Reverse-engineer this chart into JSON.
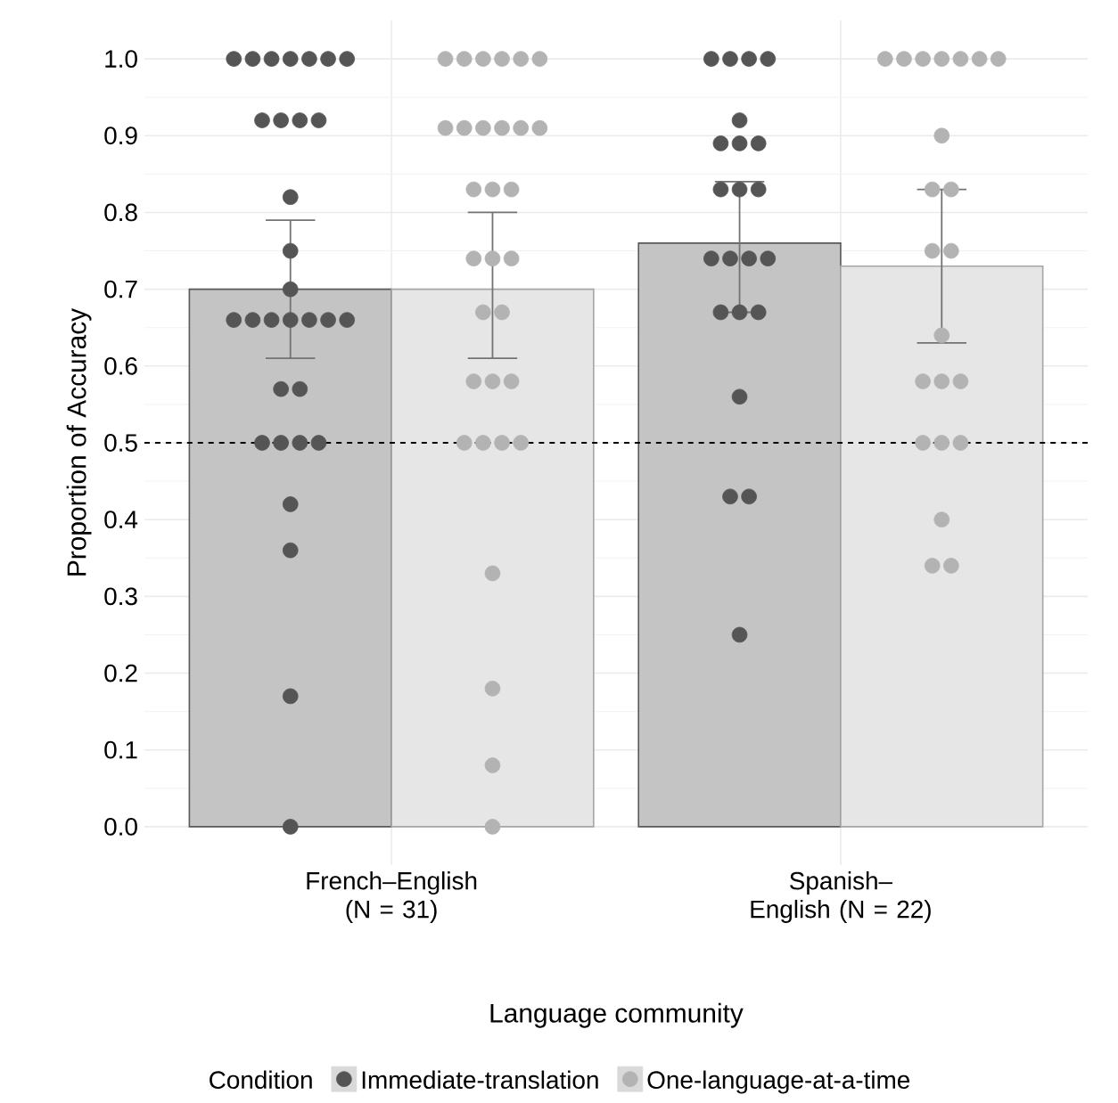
{
  "chart_data": {
    "type": "bar",
    "categories": [
      "French–English (N = 31)",
      "Spanish–English (N = 22)"
    ],
    "xlabel": "Language community",
    "ylabel": "Proportion of Accuracy",
    "legend_title": "Condition",
    "legend": "bottom",
    "grid": true,
    "ylim": [
      -0.05,
      1.05
    ],
    "yticks": [
      {
        "value": 0,
        "label": "0.0"
      },
      {
        "value": 0.1,
        "label": "0.1"
      },
      {
        "value": 0.2,
        "label": "0.2"
      },
      {
        "value": 0.3,
        "label": "0.3"
      },
      {
        "value": 0.4,
        "label": "0.4"
      },
      {
        "value": 0.5,
        "label": "0.5"
      },
      {
        "value": 0.6,
        "label": "0.6"
      },
      {
        "value": 0.7,
        "label": "0.7"
      },
      {
        "value": 0.8,
        "label": "0.8"
      },
      {
        "value": 0.9,
        "label": "0.9"
      },
      {
        "value": 1,
        "label": "1.0"
      }
    ],
    "ref_lines": [
      {
        "axis": "y",
        "value": 0.5,
        "color": "#000000",
        "line_style": "dashed"
      }
    ],
    "series": [
      {
        "color": "#c4c4c4",
        "values": [
          0.7,
          0.76
        ],
        "errors": [
          [
            0.61,
            0.79
          ],
          [
            0.67,
            0.84
          ]
        ]
      },
      {
        "color": "#e6e6e6",
        "values": [
          0.7,
          0.73
        ],
        "errors": [
          [
            0.61,
            0.8
          ],
          [
            0.63,
            0.83
          ]
        ]
      },
      {
        "type": "scatter",
        "name": "Immediate-translation",
        "color": "#555555",
        "x": [
          "French–English (N = 31)",
          "French–English (N = 31)",
          "French–English (N = 31)",
          "French–English (N = 31)",
          "French–English (N = 31)",
          "French–English (N = 31)",
          "French–English (N = 31)",
          "French–English (N = 31)",
          "French–English (N = 31)",
          "French–English (N = 31)",
          "French–English (N = 31)",
          "French–English (N = 31)",
          "French–English (N = 31)",
          "French–English (N = 31)",
          "French–English (N = 31)",
          "French–English (N = 31)",
          "French–English (N = 31)",
          "French–English (N = 31)",
          "French–English (N = 31)",
          "French–English (N = 31)",
          "French–English (N = 31)",
          "French–English (N = 31)",
          "French–English (N = 31)",
          "French–English (N = 31)",
          "French–English (N = 31)",
          "French–English (N = 31)",
          "French–English (N = 31)",
          "French–English (N = 31)",
          "French–English (N = 31)",
          "French–English (N = 31)",
          "French–English (N = 31)",
          "Spanish–English (N = 22)",
          "Spanish–English (N = 22)",
          "Spanish–English (N = 22)",
          "Spanish–English (N = 22)",
          "Spanish–English (N = 22)",
          "Spanish–English (N = 22)",
          "Spanish–English (N = 22)",
          "Spanish–English (N = 22)",
          "Spanish–English (N = 22)",
          "Spanish–English (N = 22)",
          "Spanish–English (N = 22)",
          "Spanish–English (N = 22)",
          "Spanish–English (N = 22)",
          "Spanish–English (N = 22)",
          "Spanish–English (N = 22)",
          "Spanish–English (N = 22)",
          "Spanish–English (N = 22)",
          "Spanish–English (N = 22)",
          "Spanish–English (N = 22)",
          "Spanish–English (N = 22)",
          "Spanish–English (N = 22)",
          "Spanish–English (N = 22)"
        ],
        "values": [
          1,
          1,
          1,
          1,
          1,
          1,
          1,
          0.92,
          0.92,
          0.92,
          0.92,
          0.82,
          0.75,
          0.7,
          0.66,
          0.66,
          0.66,
          0.66,
          0.66,
          0.66,
          0.66,
          0.57,
          0.57,
          0.5,
          0.5,
          0.5,
          0.5,
          0.42,
          0.36,
          0.17,
          0,
          1,
          1,
          1,
          1,
          0.92,
          0.89,
          0.89,
          0.89,
          0.83,
          0.83,
          0.83,
          0.74,
          0.74,
          0.74,
          0.74,
          0.67,
          0.67,
          0.67,
          0.56,
          0.43,
          0.43,
          0.25
        ]
      },
      {
        "type": "scatter",
        "name": "One-language-at-a-time",
        "color": "#b3b3b3",
        "x": [
          "French–English (N = 31)",
          "French–English (N = 31)",
          "French–English (N = 31)",
          "French–English (N = 31)",
          "French–English (N = 31)",
          "French–English (N = 31)",
          "French–English (N = 31)",
          "French–English (N = 31)",
          "French–English (N = 31)",
          "French–English (N = 31)",
          "French–English (N = 31)",
          "French–English (N = 31)",
          "French–English (N = 31)",
          "French–English (N = 31)",
          "French–English (N = 31)",
          "French–English (N = 31)",
          "French–English (N = 31)",
          "French–English (N = 31)",
          "French–English (N = 31)",
          "French–English (N = 31)",
          "French–English (N = 31)",
          "French–English (N = 31)",
          "French–English (N = 31)",
          "French–English (N = 31)",
          "French–English (N = 31)",
          "French–English (N = 31)",
          "French–English (N = 31)",
          "French–English (N = 31)",
          "French–English (N = 31)",
          "French–English (N = 31)",
          "French–English (N = 31)",
          "Spanish–English (N = 22)",
          "Spanish–English (N = 22)",
          "Spanish–English (N = 22)",
          "Spanish–English (N = 22)",
          "Spanish–English (N = 22)",
          "Spanish–English (N = 22)",
          "Spanish–English (N = 22)",
          "Spanish–English (N = 22)",
          "Spanish–English (N = 22)",
          "Spanish–English (N = 22)",
          "Spanish–English (N = 22)",
          "Spanish–English (N = 22)",
          "Spanish–English (N = 22)",
          "Spanish–English (N = 22)",
          "Spanish–English (N = 22)",
          "Spanish–English (N = 22)",
          "Spanish–English (N = 22)",
          "Spanish–English (N = 22)",
          "Spanish–English (N = 22)",
          "Spanish–English (N = 22)",
          "Spanish–English (N = 22)",
          "Spanish–English (N = 22)"
        ],
        "values": [
          1,
          1,
          1,
          1,
          1,
          1,
          0.91,
          0.91,
          0.91,
          0.91,
          0.91,
          0.91,
          0.83,
          0.83,
          0.83,
          0.74,
          0.74,
          0.74,
          0.67,
          0.67,
          0.58,
          0.58,
          0.58,
          0.5,
          0.5,
          0.5,
          0.5,
          0.33,
          0.18,
          0.08,
          0,
          1,
          1,
          1,
          1,
          1,
          1,
          1,
          0.9,
          0.83,
          0.83,
          0.75,
          0.75,
          0.64,
          0.58,
          0.58,
          0.58,
          0.5,
          0.5,
          0.5,
          0.4,
          0.34,
          0.34
        ]
      }
    ]
  }
}
